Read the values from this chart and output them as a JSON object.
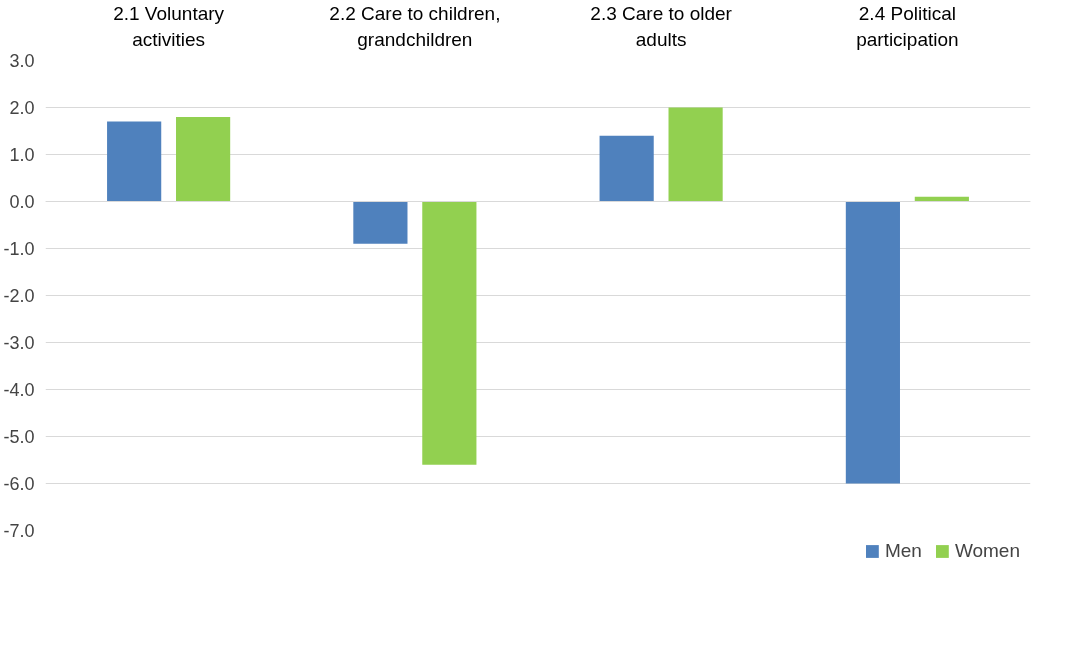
{
  "chart_data": {
    "type": "bar",
    "categories": [
      "2.1 Voluntary activities",
      "2.2 Care to children, grandchildren",
      "2.3 Care to older adults",
      "2.4 Political participation"
    ],
    "series": [
      {
        "name": "Men",
        "color": "#4f81bd",
        "values": [
          1.7,
          -0.9,
          1.4,
          -6.0
        ]
      },
      {
        "name": "Women",
        "color": "#92d050",
        "values": [
          1.8,
          -5.6,
          2.0,
          0.1
        ]
      }
    ],
    "ylim": [
      -7.0,
      3.0
    ],
    "yticks": [
      {
        "value": 3,
        "label": "3.0"
      },
      {
        "value": 2,
        "label": "2.0"
      },
      {
        "value": 1,
        "label": "1.0"
      },
      {
        "value": 0,
        "label": "0.0"
      },
      {
        "value": -1,
        "label": "-1.0"
      },
      {
        "value": -2,
        "label": "-2.0"
      },
      {
        "value": -3,
        "label": "-3.0"
      },
      {
        "value": -4,
        "label": "-4.0"
      },
      {
        "value": -5,
        "label": "-5.0"
      },
      {
        "value": -6,
        "label": "-6.0"
      },
      {
        "value": -7,
        "label": "-7.0"
      }
    ],
    "grid": "y",
    "legend": "bottom"
  }
}
